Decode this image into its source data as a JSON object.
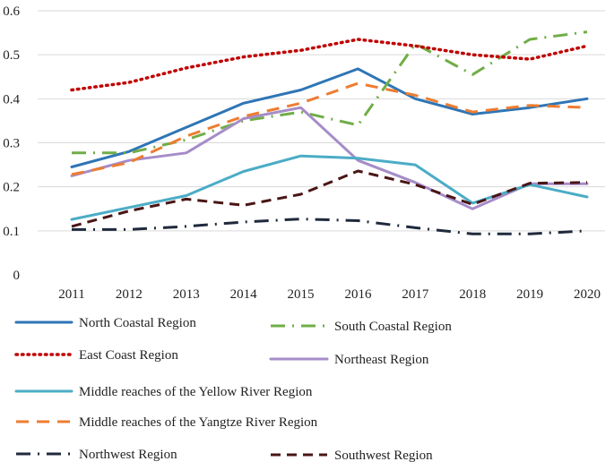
{
  "chart_data": {
    "type": "line",
    "title": "",
    "xlabel": "",
    "ylabel": "",
    "x": [
      "2011",
      "2012",
      "2013",
      "2014",
      "2015",
      "2016",
      "2017",
      "2018",
      "2019",
      "2020"
    ],
    "ylim": [
      0,
      0.6
    ],
    "yticks": [
      "0",
      "0.1",
      "0.2",
      "0.3",
      "0.4",
      "0.5",
      "0.6"
    ],
    "grid": true,
    "legend_position": "bottom",
    "series": [
      {
        "name": "North Coastal Region",
        "color": "#2e75b6",
        "style": "solid",
        "values": [
          0.245,
          0.28,
          0.335,
          0.39,
          0.42,
          0.468,
          0.4,
          0.365,
          0.38,
          0.4
        ]
      },
      {
        "name": "South Coastal Region",
        "color": "#70ad47",
        "style": "dashdot",
        "values": [
          0.277,
          0.277,
          0.307,
          0.35,
          0.37,
          0.34,
          0.525,
          0.455,
          0.535,
          0.552
        ]
      },
      {
        "name": "East Coast Region",
        "color": "#c00000",
        "style": "dotted",
        "values": [
          0.42,
          0.437,
          0.47,
          0.495,
          0.51,
          0.535,
          0.52,
          0.5,
          0.49,
          0.52
        ]
      },
      {
        "name": "Northeast Region",
        "color": "#a68cc8",
        "style": "solid",
        "values": [
          0.225,
          0.26,
          0.277,
          0.355,
          0.38,
          0.26,
          0.21,
          0.15,
          0.207,
          0.207
        ]
      },
      {
        "name": "Middle reaches of the Yellow River Region",
        "color": "#4bacc6",
        "style": "solid",
        "values": [
          0.126,
          0.153,
          0.18,
          0.235,
          0.27,
          0.265,
          0.25,
          0.163,
          0.205,
          0.177
        ]
      },
      {
        "name": "Middle reaches of the Yangtze River Region",
        "color": "#ed7d31",
        "style": "longdash",
        "values": [
          0.228,
          0.255,
          0.315,
          0.36,
          0.39,
          0.435,
          0.408,
          0.37,
          0.385,
          0.38
        ]
      },
      {
        "name": "Northwest Region",
        "color": "#1f2a3c",
        "style": "dashdot",
        "values": [
          0.103,
          0.103,
          0.11,
          0.12,
          0.127,
          0.123,
          0.107,
          0.093,
          0.093,
          0.1
        ]
      },
      {
        "name": "Southwest Region",
        "color": "#4a1515",
        "style": "dashed",
        "values": [
          0.11,
          0.145,
          0.172,
          0.158,
          0.183,
          0.236,
          0.205,
          0.16,
          0.208,
          0.21
        ]
      }
    ]
  }
}
